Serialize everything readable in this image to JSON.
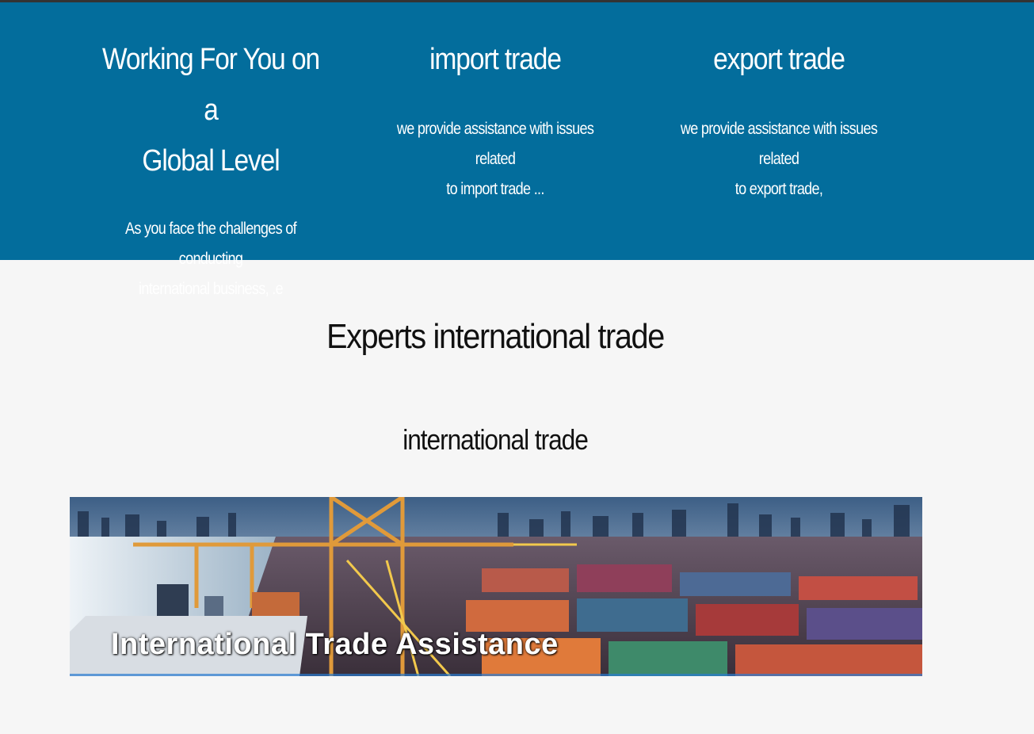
{
  "features": [
    {
      "title_line1": "Working For You on a",
      "title_line2": "Global Level",
      "desc_line1": "As you face the challenges of conducting",
      "desc_line2": "international business, .e"
    },
    {
      "title_line1": "import trade",
      "desc_line1": "we provide assistance with issues related",
      "desc_line2": "to import trade ..."
    },
    {
      "title_line1": "export trade",
      "desc_line1": "we provide assistance with issues related",
      "desc_line2": "to export trade,"
    }
  ],
  "section": {
    "title": "Experts international trade",
    "subtitle": "international trade"
  },
  "banner": {
    "caption": "International Trade Assistance"
  },
  "colors": {
    "band": "#036d9c",
    "page_background": "#f6f6f6"
  }
}
